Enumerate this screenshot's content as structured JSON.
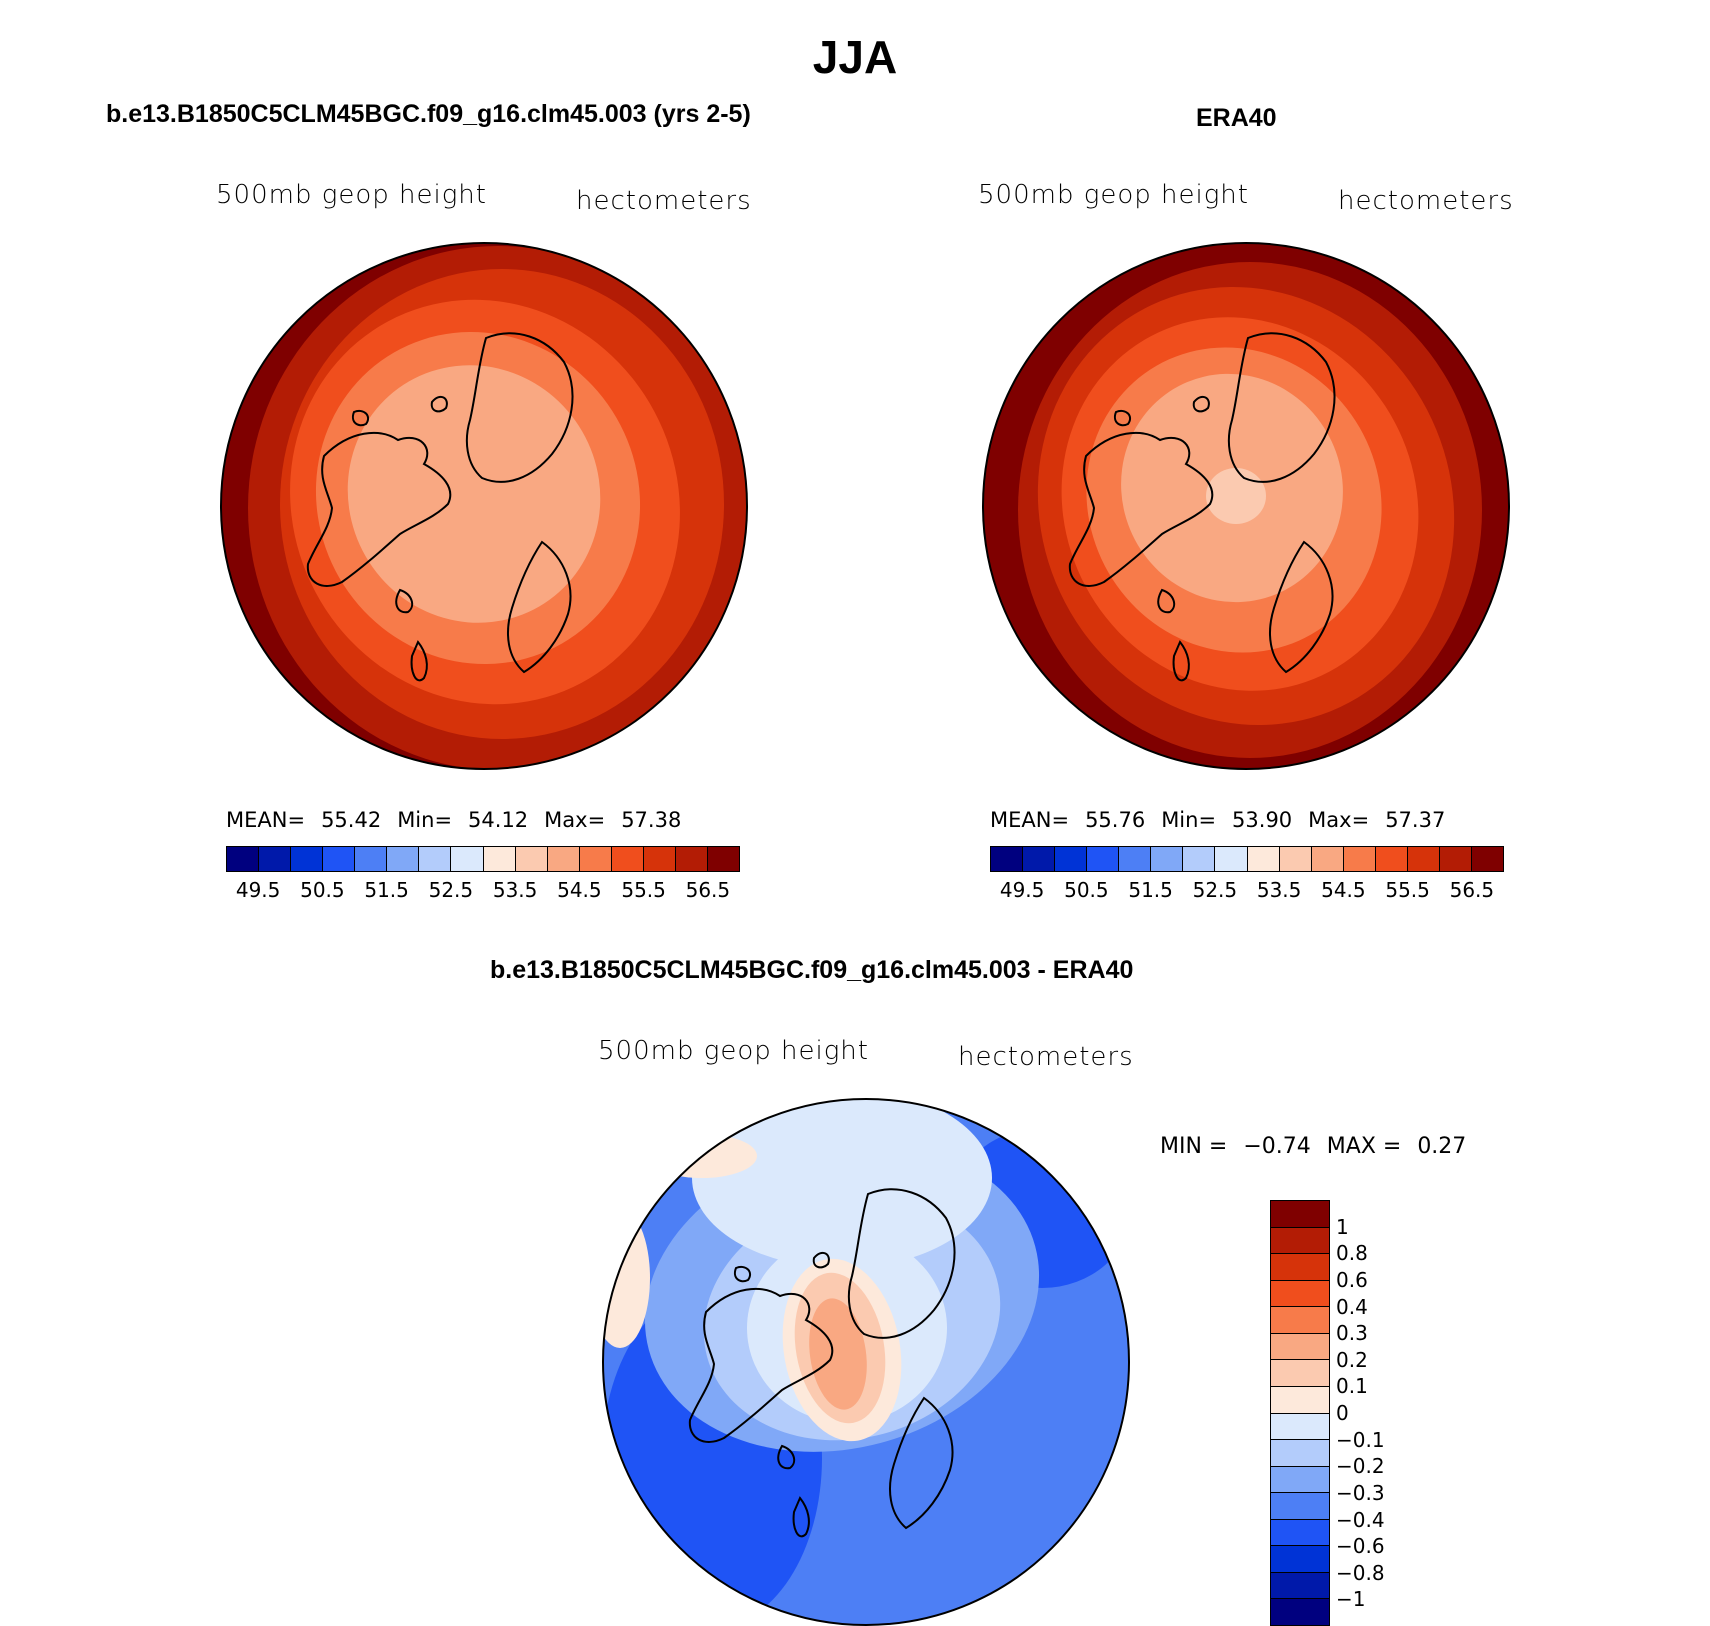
{
  "figure": {
    "title": "JJA"
  },
  "panels": {
    "model": {
      "title": "b.e13.B1850C5CLM45BGC.f09_g16.clm45.003 (yrs 2-5)",
      "variable": "500mb  geop  height",
      "units": "hectometers",
      "stats": {
        "mean_label": "MEAN=",
        "mean": "55.42",
        "min_label": "Min=",
        "min": "54.12",
        "max_label": "Max=",
        "max": "57.38"
      }
    },
    "obs": {
      "title": "ERA40",
      "variable": "500mb  geop  height",
      "units": "hectometers",
      "stats": {
        "mean_label": "MEAN=",
        "mean": "55.76",
        "min_label": "Min=",
        "min": "53.90",
        "max_label": "Max=",
        "max": "57.37"
      }
    },
    "diff": {
      "title": "b.e13.B1850C5CLM45BGC.f09_g16.clm45.003 - ERA40",
      "variable": "500mb  geop  height",
      "units": "hectometers",
      "stats": {
        "min_label": "MIN =",
        "min": "−0.74",
        "max_label": "MAX =",
        "max": "0.27"
      }
    }
  },
  "colors": {
    "abs_scale": [
      "#00007f",
      "#0019aa",
      "#0033d6",
      "#1f54f5",
      "#4d7ff5",
      "#80a8f7",
      "#b3ccfb",
      "#dbe9fc",
      "#fde9db",
      "#fbcab0",
      "#f9a882",
      "#f77b4a",
      "#f04e1d",
      "#d6330a",
      "#b31c05",
      "#7f0000"
    ],
    "diff_scale": [
      "#7f0000",
      "#b31c05",
      "#d6330a",
      "#f04e1d",
      "#f77b4a",
      "#f9a882",
      "#fbcab0",
      "#fde9db",
      "#dbe9fc",
      "#b3ccfb",
      "#80a8f7",
      "#4d7ff5",
      "#1f54f5",
      "#0033d6",
      "#0019aa",
      "#00007f"
    ]
  },
  "chart_data": [
    {
      "type": "heatmap",
      "projection": "north-polar-stereographic",
      "title": "b.e13.B1850C5CLM45BGC.f09_g16.clm45.003 (yrs 2-5)",
      "variable": "500mb geop height",
      "units": "hectometers",
      "contour_levels": [
        "49.5",
        "50",
        "50.5",
        "51",
        "51.5",
        "52",
        "52.5",
        "53",
        "53.5",
        "54",
        "54.5",
        "55",
        "55.5",
        "56",
        "56.5"
      ],
      "colorbar_labels": [
        "49.5",
        "50.5",
        "51.5",
        "52.5",
        "53.5",
        "54.5",
        "55.5",
        "56.5"
      ],
      "mean": 55.42,
      "min": 54.12,
      "max": 57.38
    },
    {
      "type": "heatmap",
      "projection": "north-polar-stereographic",
      "title": "ERA40",
      "variable": "500mb geop height",
      "units": "hectometers",
      "contour_levels": [
        "49.5",
        "50",
        "50.5",
        "51",
        "51.5",
        "52",
        "52.5",
        "53",
        "53.5",
        "54",
        "54.5",
        "55",
        "55.5",
        "56",
        "56.5"
      ],
      "colorbar_labels": [
        "49.5",
        "50.5",
        "51.5",
        "52.5",
        "53.5",
        "54.5",
        "55.5",
        "56.5"
      ],
      "mean": 55.76,
      "min": 53.9,
      "max": 57.37
    },
    {
      "type": "heatmap",
      "projection": "north-polar-stereographic",
      "title": "b.e13.B1850C5CLM45BGC.f09_g16.clm45.003 - ERA40",
      "variable": "500mb geop height",
      "units": "hectometers",
      "colorbar_labels": [
        "1",
        "0.8",
        "0.6",
        "0.4",
        "0.3",
        "0.2",
        "0.1",
        "0",
        "−0.1",
        "−0.2",
        "−0.3",
        "−0.4",
        "−0.6",
        "−0.8",
        "−1"
      ],
      "min": -0.74,
      "max": 0.27
    }
  ]
}
